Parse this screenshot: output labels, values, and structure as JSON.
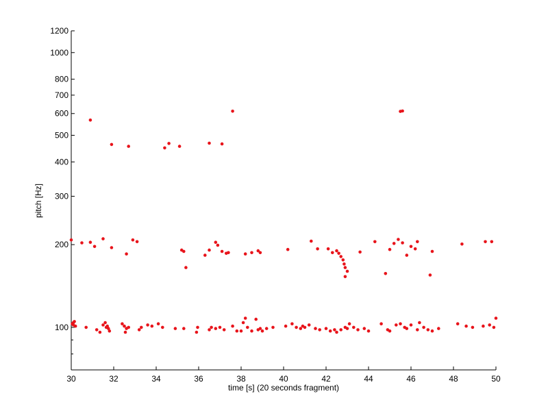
{
  "chart_data": {
    "type": "scatter",
    "title": "",
    "xlabel": "time [s] (20 seconds fragment)",
    "ylabel": "pitch [Hz]",
    "xlim": [
      30,
      50
    ],
    "ylim": [
      70,
      1200
    ],
    "y_scale": "log",
    "grid": false,
    "marker_color": "#e8141b",
    "x_ticks": [
      30,
      32,
      34,
      36,
      38,
      40,
      42,
      44,
      46,
      48,
      50
    ],
    "x_tick_labels": [
      "30",
      "32",
      "34",
      "36",
      "38",
      "40",
      "42",
      "44",
      "46",
      "48",
      "50"
    ],
    "y_ticks": [
      100,
      200,
      300,
      400,
      500,
      600,
      700,
      800,
      1000,
      1200
    ],
    "y_tick_labels": [
      "100",
      "200",
      "300",
      "400",
      "500",
      "600",
      "700",
      "800",
      "1000",
      "1200"
    ],
    "y_minor_ticks": [
      70,
      80,
      90
    ],
    "points": [
      [
        30.05,
        103
      ],
      [
        30.1,
        102
      ],
      [
        30.15,
        105
      ],
      [
        30.2,
        101
      ],
      [
        30.1,
        104
      ],
      [
        30.7,
        100
      ],
      [
        31.2,
        98
      ],
      [
        31.35,
        96
      ],
      [
        31.5,
        102
      ],
      [
        31.6,
        104
      ],
      [
        31.7,
        101
      ],
      [
        31.65,
        100
      ],
      [
        31.75,
        99
      ],
      [
        31.8,
        97
      ],
      [
        32.4,
        103
      ],
      [
        32.5,
        101
      ],
      [
        32.6,
        99
      ],
      [
        32.55,
        96
      ],
      [
        32.7,
        100
      ],
      [
        33.2,
        98
      ],
      [
        33.3,
        100
      ],
      [
        33.6,
        102
      ],
      [
        33.8,
        101
      ],
      [
        34.1,
        103
      ],
      [
        34.3,
        100
      ],
      [
        34.9,
        99
      ],
      [
        35.3,
        99
      ],
      [
        35.9,
        96
      ],
      [
        35.95,
        100
      ],
      [
        36.5,
        98
      ],
      [
        36.6,
        100
      ],
      [
        36.8,
        99
      ],
      [
        37.0,
        100
      ],
      [
        37.2,
        98
      ],
      [
        37.6,
        101
      ],
      [
        37.8,
        97
      ],
      [
        38.0,
        97
      ],
      [
        38.1,
        104
      ],
      [
        38.2,
        108
      ],
      [
        38.3,
        100
      ],
      [
        38.5,
        97
      ],
      [
        38.7,
        107
      ],
      [
        38.8,
        98
      ],
      [
        38.9,
        99
      ],
      [
        39.0,
        97
      ],
      [
        39.2,
        99
      ],
      [
        39.5,
        100
      ],
      [
        40.1,
        101
      ],
      [
        40.4,
        103
      ],
      [
        40.6,
        100
      ],
      [
        40.8,
        99
      ],
      [
        40.9,
        101
      ],
      [
        41.0,
        100
      ],
      [
        41.2,
        102
      ],
      [
        41.5,
        99
      ],
      [
        41.7,
        98
      ],
      [
        42.0,
        99
      ],
      [
        42.2,
        97
      ],
      [
        42.4,
        98
      ],
      [
        42.5,
        96
      ],
      [
        42.7,
        98
      ],
      [
        42.9,
        100
      ],
      [
        43.0,
        99
      ],
      [
        43.1,
        103
      ],
      [
        43.3,
        100
      ],
      [
        43.5,
        98
      ],
      [
        43.8,
        99
      ],
      [
        44.0,
        97
      ],
      [
        44.6,
        103
      ],
      [
        44.9,
        98
      ],
      [
        45.0,
        97
      ],
      [
        45.3,
        102
      ],
      [
        45.5,
        103
      ],
      [
        45.7,
        100
      ],
      [
        45.8,
        99
      ],
      [
        46.0,
        102
      ],
      [
        46.3,
        98
      ],
      [
        46.4,
        104
      ],
      [
        46.6,
        100
      ],
      [
        46.8,
        98
      ],
      [
        47.0,
        97
      ],
      [
        47.3,
        99
      ],
      [
        48.2,
        103
      ],
      [
        48.6,
        101
      ],
      [
        48.9,
        100
      ],
      [
        49.4,
        101
      ],
      [
        49.7,
        102
      ],
      [
        49.9,
        100
      ],
      [
        50.0,
        108
      ],
      [
        30.0,
        208
      ],
      [
        30.5,
        203
      ],
      [
        30.9,
        204
      ],
      [
        31.1,
        197
      ],
      [
        31.5,
        210
      ],
      [
        31.9,
        195
      ],
      [
        32.6,
        185
      ],
      [
        32.9,
        208
      ],
      [
        33.1,
        205
      ],
      [
        35.2,
        191
      ],
      [
        35.3,
        189
      ],
      [
        35.4,
        165
      ],
      [
        36.3,
        183
      ],
      [
        36.5,
        191
      ],
      [
        36.8,
        204
      ],
      [
        36.9,
        199
      ],
      [
        37.1,
        189
      ],
      [
        37.3,
        186
      ],
      [
        37.4,
        187
      ],
      [
        38.2,
        185
      ],
      [
        38.5,
        187
      ],
      [
        38.8,
        190
      ],
      [
        38.9,
        187
      ],
      [
        40.2,
        192
      ],
      [
        41.3,
        206
      ],
      [
        41.6,
        193
      ],
      [
        42.1,
        193
      ],
      [
        42.3,
        187
      ],
      [
        42.5,
        190
      ],
      [
        42.6,
        186
      ],
      [
        42.7,
        181
      ],
      [
        42.8,
        176
      ],
      [
        42.85,
        170
      ],
      [
        42.9,
        165
      ],
      [
        43.0,
        160
      ],
      [
        42.9,
        153
      ],
      [
        43.6,
        188
      ],
      [
        44.3,
        205
      ],
      [
        44.8,
        157
      ],
      [
        45.0,
        192
      ],
      [
        45.2,
        202
      ],
      [
        45.4,
        209
      ],
      [
        45.6,
        203
      ],
      [
        45.8,
        183
      ],
      [
        46.0,
        197
      ],
      [
        46.2,
        193
      ],
      [
        46.3,
        205
      ],
      [
        47.0,
        189
      ],
      [
        46.9,
        155
      ],
      [
        48.4,
        201
      ],
      [
        49.5,
        205
      ],
      [
        49.8,
        205
      ],
      [
        30.9,
        568
      ],
      [
        31.9,
        463
      ],
      [
        32.7,
        456
      ],
      [
        34.4,
        450
      ],
      [
        34.6,
        467
      ],
      [
        35.1,
        456
      ],
      [
        36.5,
        468
      ],
      [
        37.1,
        465
      ],
      [
        37.6,
        612
      ],
      [
        45.5,
        611
      ],
      [
        45.6,
        613
      ]
    ]
  }
}
